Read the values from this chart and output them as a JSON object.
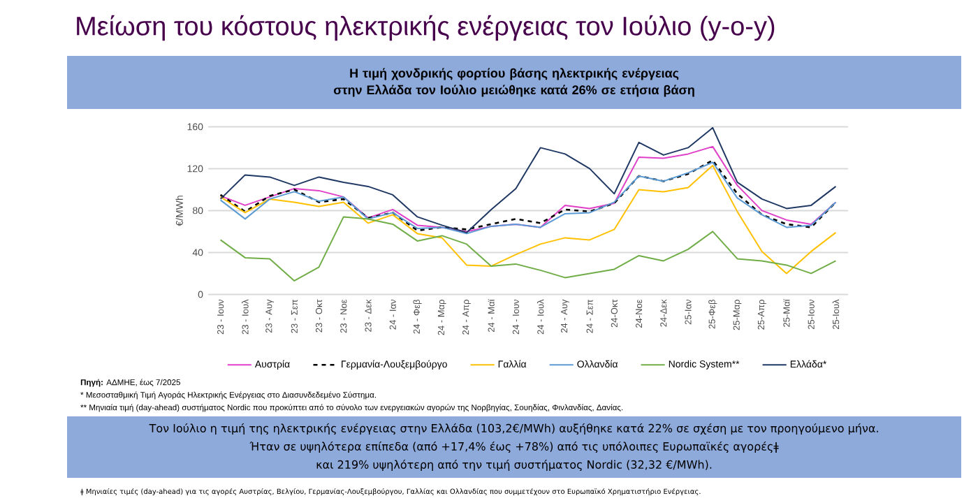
{
  "chart_data": {
    "type": "line",
    "title": "Μείωση του κόστους ηλεκτρικής ενέργειας τον Ιούλιο (y-o-y)",
    "subtitle": "Η τιμή χονδρικής φορτίου βάσης ηλεκτρικής ενέργειας στην Ελλάδα τον Ιούλιο μειώθηκε κατά 26% σε ετήσια βάση",
    "ylabel": "€/MWh",
    "ylim": [
      0,
      160
    ],
    "yticks": [
      0,
      40,
      80,
      120,
      160
    ],
    "grid": "y",
    "legend": "bottom",
    "categories": [
      "23 - Ιουν",
      "23 - Ιουλ",
      "23 - Αυγ",
      "23 - Σεπ",
      "23 - Οκτ",
      "23 - Νοε",
      "23 - Δεκ",
      "24 - Ιαν",
      "24 - Φεβ",
      "24 - Μαρ",
      "24 - Απρ",
      "24 - Μαϊ",
      "24 - Ιουν",
      "24 - Ιουλ",
      "24 - Αυγ",
      "24 - Σεπ",
      "24-Οκτ",
      "24-Νοε",
      "24-Δεκ",
      "25-Ιαν",
      "25-Φεβ",
      "25-Μαρ",
      "25-Απρ",
      "25-Μαϊ",
      "25-Ιουν",
      "25-Ιουλ"
    ],
    "series": [
      {
        "name": "Αυστρία",
        "color": "#e040c8",
        "values": [
          94,
          85,
          93,
          101,
          99,
          93,
          73,
          81,
          66,
          64,
          60,
          65,
          67,
          64,
          85,
          82,
          87,
          131,
          130,
          134,
          141,
          104,
          80,
          71,
          67,
          88
        ]
      },
      {
        "name": "Γερμανία-Λουξεμβούργο",
        "color": "#000000",
        "line_style": "dashed",
        "values": [
          95,
          79,
          94,
          100,
          88,
          91,
          73,
          78,
          61,
          64,
          62,
          67,
          72,
          68,
          81,
          79,
          87,
          113,
          108,
          115,
          128,
          96,
          76,
          67,
          64,
          88
        ]
      },
      {
        "name": "Γαλλία",
        "color": "#ffc000",
        "values": [
          93,
          78,
          91,
          88,
          84,
          88,
          68,
          76,
          58,
          54,
          28,
          27,
          38,
          48,
          54,
          52,
          62,
          100,
          98,
          102,
          123,
          79,
          41,
          20,
          41,
          59
        ]
      },
      {
        "name": "Ολλανδία",
        "color": "#5b9bd5",
        "values": [
          90,
          72,
          91,
          98,
          89,
          93,
          72,
          78,
          63,
          64,
          58,
          65,
          67,
          64,
          77,
          78,
          88,
          113,
          108,
          116,
          126,
          92,
          76,
          64,
          66,
          88
        ]
      },
      {
        "name": "Nordic System**",
        "color": "#70ad47",
        "values": [
          52,
          35,
          34,
          13,
          26,
          74,
          72,
          67,
          51,
          56,
          48,
          27,
          29,
          23,
          16,
          20,
          24,
          37,
          32,
          43,
          60,
          34,
          32,
          28,
          20,
          32
        ]
      },
      {
        "name": "Ελλάδα*",
        "color": "#203864",
        "values": [
          91,
          114,
          112,
          104,
          112,
          107,
          103,
          95,
          74,
          66,
          59,
          81,
          101,
          140,
          134,
          120,
          96,
          145,
          133,
          140,
          159,
          107,
          91,
          82,
          85,
          103
        ]
      }
    ],
    "annotations": [
      "**Πηγή:** ΑΔΜΗΕ, έως 7/2025",
      "* Μεσοσταθμική Τιμή Αγοράς Ηλεκτρικής Ενέργειας στο Διασυνδεδεμένο Σύστημα.",
      "** Μηνιαία τιμή (day-ahead) συστήματος Nordic που προκύπτει από το σύνολο των ενεργειακών αγορών της Νορβηγίας, Σουηδίας, Φινλανδίας, Δανίας.",
      "Τον Ιούλιο η τιμή της ηλεκτρικής ενέργειας στην Ελλάδα (103,2€/MWh) αυξήθηκε κατά 22% σε σχέση με τον προηγούμενο μήνα.",
      "Ήταν σε υψηλότερα επίπεδα (από +17,4% έως +78%) από τις υπόλοιπες Ευρωπαϊκές αγορέςǂ",
      "και 219% υψηλότερη από την τιμή συστήματος Nordic (32,32 €/MWh).",
      "ǂ Μηνιαίες τιμές (day-ahead) για τις αγορές Αυστρίας, Βελγίου, Γερμανίας-Λουξεμβούργου, Γαλλίας και Ολλανδίας που συμμετέχουν στο Ευρωπαϊκό Χρηματιστήριο Ενέργειας."
    ]
  }
}
